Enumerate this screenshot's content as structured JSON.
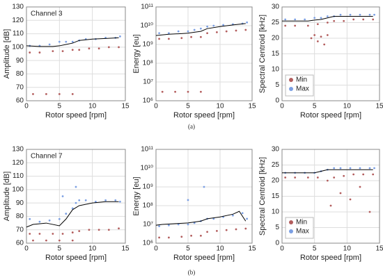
{
  "chart_data": [
    {
      "type": "scatter",
      "annotation": "Channel 3",
      "xlabel": "Rotor speed [rpm]",
      "ylabel": "Amplitude [dB]",
      "xlim": [
        0,
        15
      ],
      "xticks": [
        0,
        5,
        10,
        15
      ],
      "ylim": [
        60,
        130
      ],
      "yticks": [
        60,
        70,
        80,
        90,
        100,
        110,
        120,
        130
      ],
      "grid": true,
      "series": [
        {
          "name": "Max",
          "color": "#7b9fe3",
          "x": [
            0.5,
            2,
            3.5,
            5,
            6,
            7,
            8,
            9,
            10.5,
            12,
            13.5,
            14.2
          ],
          "values": [
            101,
            101,
            102,
            104,
            104,
            104,
            105,
            106,
            106,
            107,
            107,
            108
          ]
        },
        {
          "name": "Min",
          "color": "#b35d5d",
          "x": [
            0.5,
            2,
            4,
            5.5,
            7,
            8,
            9.5,
            11,
            12.5,
            14,
            1,
            3,
            5,
            7
          ],
          "values": [
            96,
            96,
            97,
            97,
            98,
            98,
            99,
            99,
            100,
            100,
            65,
            65,
            65,
            65
          ]
        },
        {
          "style": "line",
          "color": "#000000",
          "x": [
            0,
            2,
            4,
            5,
            6,
            7,
            8,
            10,
            12,
            14
          ],
          "values": [
            101,
            100.5,
            100.5,
            101,
            102,
            103,
            105,
            106,
            106.5,
            107
          ]
        }
      ]
    },
    {
      "type": "scatter",
      "xlabel": "Rotor speed [rpm]",
      "ylabel": "Energy [eu]",
      "log": true,
      "xlim": [
        0,
        15
      ],
      "xticks": [
        0,
        5,
        10,
        15
      ],
      "ylim": [
        1000000,
        100000000000
      ],
      "yticks": [
        {
          "value": 1000000,
          "label": "10⁶"
        },
        {
          "value": 10000000,
          "label": "10⁷"
        },
        {
          "value": 100000000,
          "label": "10⁸"
        },
        {
          "value": 1000000000,
          "label": "10⁹"
        },
        {
          "value": 10000000000,
          "label": "10¹⁰"
        },
        {
          "value": 100000000000,
          "label": "10¹¹"
        }
      ],
      "grid": true,
      "series": [
        {
          "name": "Max",
          "color": "#7b9fe3",
          "x": [
            0.5,
            2,
            3.5,
            5,
            6,
            7,
            8,
            9,
            10.5,
            12,
            13.5,
            14.2
          ],
          "values": [
            4000000000,
            4000000000,
            5000000000,
            5000000000,
            6000000000,
            7000000000,
            9000000000,
            10000000000,
            11000000000,
            12000000000,
            13000000000,
            15000000000
          ]
        },
        {
          "name": "Min",
          "color": "#b35d5d",
          "x": [
            0.5,
            2,
            4,
            5.5,
            7,
            8,
            9.5,
            11,
            12.5,
            14,
            1,
            3,
            5,
            7
          ],
          "values": [
            2000000000,
            2000000000,
            2200000000,
            2500000000,
            2500000000,
            4000000000,
            4500000000,
            5000000000,
            5500000000,
            6000000000,
            3000000,
            3000000,
            3000000,
            3000000
          ]
        },
        {
          "style": "line",
          "color": "#000000",
          "x": [
            0,
            2,
            4,
            5,
            6,
            7,
            8,
            10,
            12,
            14
          ],
          "values": [
            3000000000,
            3500000000,
            3800000000,
            4000000000,
            4500000000,
            5000000000,
            7000000000,
            9000000000,
            11000000000,
            13000000000
          ]
        }
      ]
    },
    {
      "type": "scatter",
      "xlabel": "Rotor speed [rpm]",
      "ylabel": "Spectral Centroid [kHz]",
      "legend": "lower left",
      "xlim": [
        0,
        15
      ],
      "xticks": [
        0,
        5,
        10,
        15
      ],
      "ylim": [
        0,
        30
      ],
      "yticks": [
        0,
        5,
        10,
        15,
        20,
        25,
        30
      ],
      "grid": true,
      "series": [
        {
          "name": "Min",
          "color": "#b35d5d",
          "x": [
            0.5,
            2,
            4,
            5.5,
            7,
            8,
            9.5,
            11,
            12.5,
            14,
            4.5,
            5,
            5.5,
            6,
            6.5,
            7
          ],
          "values": [
            24,
            24,
            24,
            24.5,
            25,
            25.5,
            25.5,
            26,
            26,
            26,
            20,
            21,
            19,
            20.5,
            18,
            21
          ]
        },
        {
          "name": "Max",
          "color": "#7b9fe3",
          "x": [
            0.5,
            2,
            3.5,
            5,
            6,
            7,
            8,
            9,
            10.5,
            12,
            13.5,
            14.2
          ],
          "values": [
            26,
            26,
            26,
            26.5,
            26.5,
            27,
            27,
            27.5,
            27.5,
            27.5,
            27.5,
            27.5
          ]
        },
        {
          "style": "line",
          "color": "#000000",
          "x": [
            0,
            2,
            4,
            5,
            6,
            7,
            8,
            10,
            12,
            14
          ],
          "values": [
            25.5,
            25.5,
            25.5,
            25.8,
            26,
            26.5,
            27,
            27,
            27,
            27
          ]
        }
      ]
    },
    {
      "type": "scatter",
      "annotation": "Channel 7",
      "xlabel": "Rotor speed [rpm]",
      "ylabel": "Amplitude [dB]",
      "xlim": [
        0,
        15
      ],
      "xticks": [
        0,
        5,
        10,
        15
      ],
      "ylim": [
        60,
        130
      ],
      "yticks": [
        60,
        70,
        80,
        90,
        100,
        110,
        120,
        130
      ],
      "grid": true,
      "series": [
        {
          "name": "Max",
          "color": "#7b9fe3",
          "x": [
            0.5,
            2,
            3.5,
            5,
            6,
            7,
            7.5,
            8,
            9,
            10.5,
            12,
            13.5,
            14.2,
            5.5,
            7.5
          ],
          "values": [
            78,
            76,
            77,
            78,
            82,
            86,
            90,
            92,
            92,
            91,
            92,
            92,
            91,
            95,
            102
          ]
        },
        {
          "name": "Min",
          "color": "#b35d5d",
          "x": [
            0.5,
            2,
            4,
            5.5,
            7,
            8,
            9.5,
            11,
            12.5,
            14,
            1,
            3,
            5,
            7
          ],
          "values": [
            67,
            67,
            67,
            67,
            68,
            69,
            70,
            70,
            70,
            71,
            62,
            62,
            62,
            62
          ]
        },
        {
          "style": "line",
          "color": "#000000",
          "x": [
            0,
            1,
            3,
            5,
            6,
            7,
            8,
            10,
            12,
            14
          ],
          "values": [
            72,
            74,
            75,
            73,
            78,
            85,
            88,
            90,
            91,
            91
          ]
        }
      ]
    },
    {
      "type": "scatter",
      "xlabel": "Rotor speed [rpm]",
      "ylabel": "Energy [eu]",
      "log": true,
      "xlim": [
        0,
        15
      ],
      "xticks": [
        0,
        5,
        10,
        15
      ],
      "ylim": [
        1000000,
        100000000000
      ],
      "yticks": [
        {
          "value": 1000000,
          "label": "10⁶"
        },
        {
          "value": 10000000,
          "label": "10⁷"
        },
        {
          "value": 100000000,
          "label": "10⁸"
        },
        {
          "value": 1000000000,
          "label": "10⁹"
        },
        {
          "value": 10000000000,
          "label": "10¹⁰"
        },
        {
          "value": 100000000000,
          "label": "10¹¹"
        }
      ],
      "grid": true,
      "series": [
        {
          "name": "Max",
          "color": "#7b9fe3",
          "x": [
            0.5,
            2,
            3.5,
            5,
            6,
            7,
            8,
            9,
            10.5,
            12,
            13.5,
            14.2,
            5,
            7.5
          ],
          "values": [
            8000000,
            9000000,
            10000000,
            10000000,
            12000000,
            15000000,
            20000000,
            20000000,
            25000000,
            30000000,
            40000000,
            20000000,
            200000000,
            1000000000
          ]
        },
        {
          "name": "Min",
          "color": "#b35d5d",
          "x": [
            0.5,
            2,
            4,
            5.5,
            7,
            8,
            9.5,
            11,
            12.5,
            14
          ],
          "values": [
            2000000,
            2000000,
            2200000,
            2500000,
            2500000,
            4000000,
            4500000,
            5000000,
            5500000,
            6000000
          ]
        },
        {
          "style": "line",
          "color": "#000000",
          "x": [
            0,
            1,
            3,
            5,
            7,
            8,
            10,
            12,
            13,
            14
          ],
          "values": [
            9000000,
            10000000,
            11000000,
            12000000,
            15000000,
            20000000,
            25000000,
            35000000,
            50000000,
            15000000
          ]
        }
      ]
    },
    {
      "type": "scatter",
      "xlabel": "Rotor speed [rpm]",
      "ylabel": "Spectral Centroid [kHz]",
      "legend": "lower left",
      "xlim": [
        0,
        15
      ],
      "xticks": [
        0,
        5,
        10,
        15
      ],
      "ylim": [
        0,
        30
      ],
      "yticks": [
        0,
        5,
        10,
        15,
        20,
        25,
        30
      ],
      "grid": true,
      "series": [
        {
          "name": "Min",
          "color": "#b35d5d",
          "x": [
            0.5,
            2,
            4,
            5.5,
            7,
            8,
            9.5,
            11,
            12.5,
            14,
            7.5,
            9,
            10.5,
            12,
            13.5
          ],
          "values": [
            21,
            21,
            21,
            21,
            20,
            21,
            21.5,
            22,
            22,
            22,
            12,
            16,
            14,
            18,
            10
          ]
        },
        {
          "name": "Max",
          "color": "#7b9fe3",
          "x": [
            0.5,
            2,
            3.5,
            5,
            6,
            7,
            8,
            9,
            10.5,
            12,
            13.5,
            14.2
          ],
          "values": [
            22.5,
            22.5,
            22.5,
            22.5,
            23,
            23.5,
            24,
            24,
            24,
            24,
            24,
            24
          ]
        },
        {
          "style": "line",
          "color": "#000000",
          "x": [
            0,
            2,
            4,
            5,
            6,
            7,
            8,
            10,
            12,
            14
          ],
          "values": [
            22.5,
            22.5,
            22.5,
            22.5,
            23,
            23.5,
            23.5,
            23.5,
            23.5,
            23.5
          ]
        }
      ]
    }
  ],
  "captions": [
    "(a)",
    "(b)"
  ]
}
